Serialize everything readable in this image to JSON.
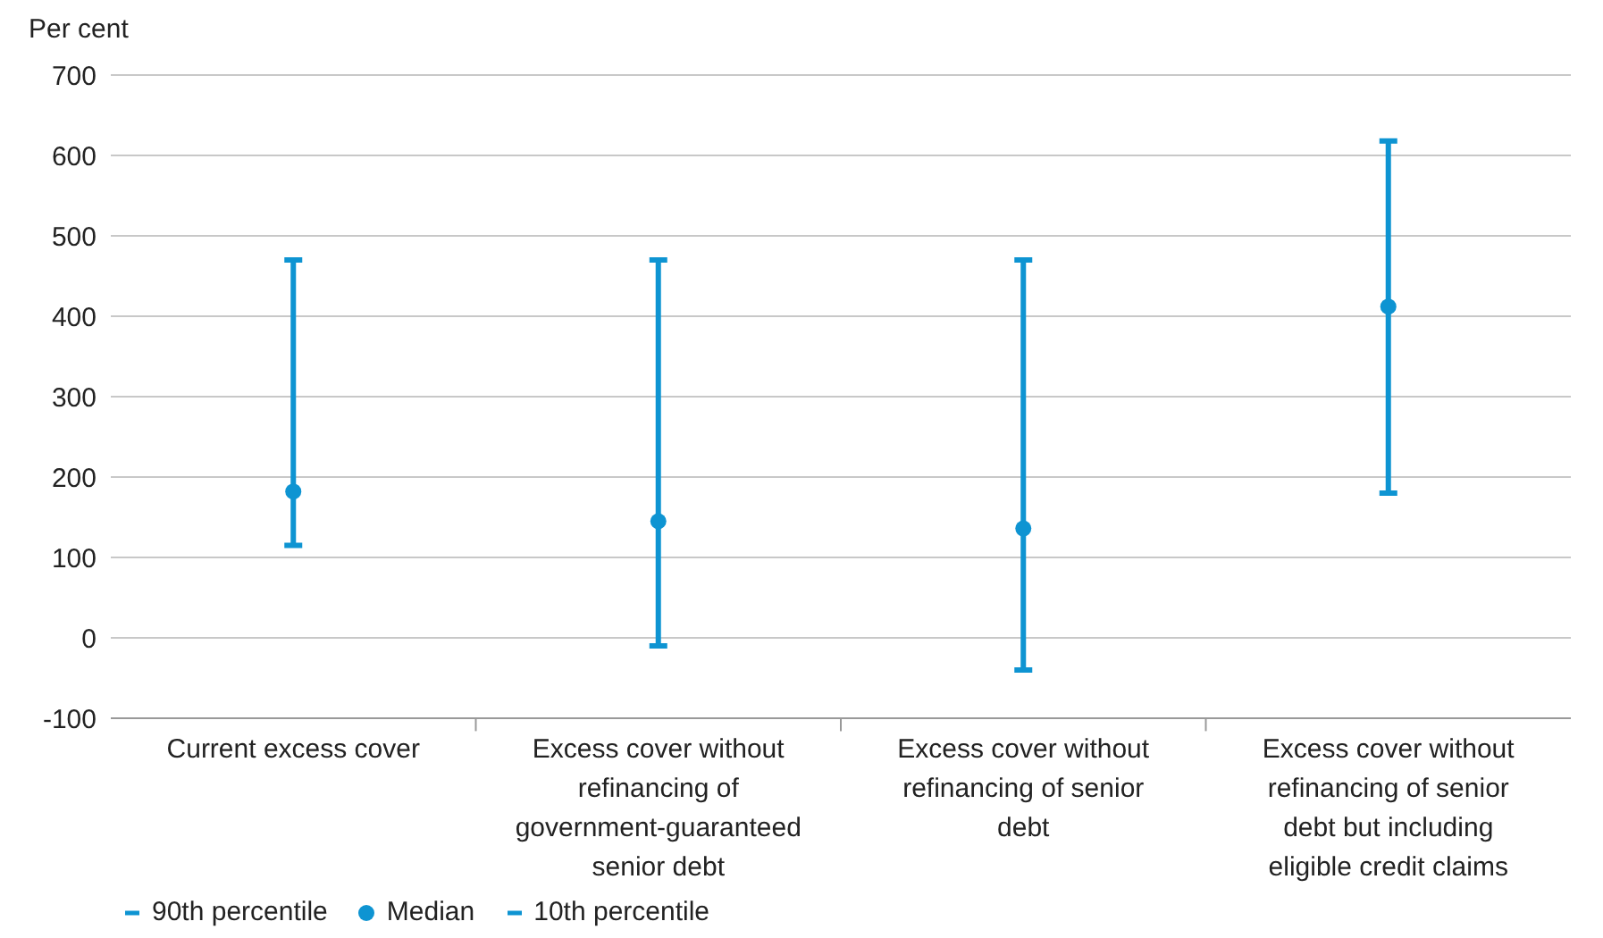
{
  "chart_data": {
    "type": "scatter",
    "ylabel": "Per cent",
    "categories": [
      "Current excess cover",
      "Excess cover without refinancing of government-guaranteed senior debt",
      "Excess cover without refinancing of senior debt",
      "Excess cover without refinancing of senior debt but including eligible credit claims"
    ],
    "series": [
      {
        "name": "90th percentile",
        "color": "#0e94d2",
        "values": [
          470,
          470,
          470,
          618
        ]
      },
      {
        "name": "Median",
        "color": "#0e94d2",
        "marker": "circle",
        "values": [
          182,
          145,
          136,
          412
        ]
      },
      {
        "name": "10th percentile",
        "color": "#0e94d2",
        "values": [
          115,
          -10,
          -40,
          180
        ]
      }
    ],
    "ylim": [
      -100,
      700
    ],
    "yticks": [
      -100,
      0,
      100,
      200,
      300,
      400,
      500,
      600,
      700
    ],
    "grid": "y",
    "legend": "bottom left"
  }
}
